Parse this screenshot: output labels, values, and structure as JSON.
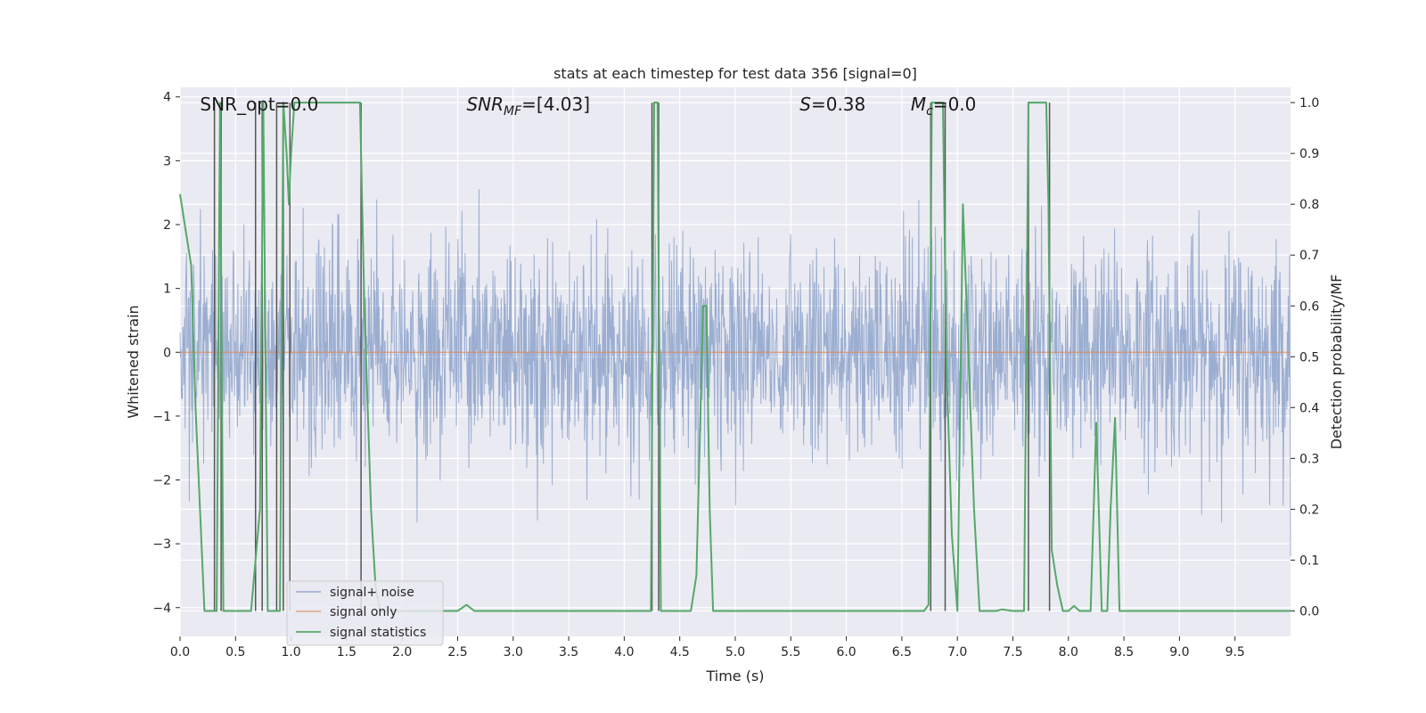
{
  "chart_data": {
    "type": "line",
    "title": "stats at each timestep for test data 356 [signal=0]",
    "xlabel": "Time (s)",
    "ylabel": "Whitened strain",
    "ylabel_right": "Detection probability/MF",
    "xlim": [
      0,
      10
    ],
    "ylim": [
      -4.45,
      4.15
    ],
    "ylim_right": [
      -0.05,
      1.03
    ],
    "xticks": [
      "0.0",
      "0.5",
      "1.0",
      "1.5",
      "2.0",
      "2.5",
      "3.0",
      "3.5",
      "4.0",
      "4.5",
      "5.0",
      "5.5",
      "6.0",
      "6.5",
      "7.0",
      "7.5",
      "8.0",
      "8.5",
      "9.0",
      "9.5"
    ],
    "yticks": [
      "−4",
      "−3",
      "−2",
      "−1",
      "0",
      "1",
      "2",
      "3",
      "4"
    ],
    "yticks_right": [
      "0.0",
      "0.1",
      "0.2",
      "0.3",
      "0.4",
      "0.5",
      "0.6",
      "0.7",
      "0.8",
      "0.9",
      "1.0"
    ],
    "grid": true,
    "legend_position": "lower-left",
    "annotations": [
      {
        "text": "SNR_opt=0.0",
        "x": 0.18
      },
      {
        "text_main": "SNR",
        "text_sub": "MF",
        "text_rest": "=[4.03]",
        "x": 2.58
      },
      {
        "text_main": "S",
        "text_sub": "",
        "text_rest": "=0.38",
        "x": 5.58
      },
      {
        "text_main": "M",
        "text_sub": "c",
        "text_rest": "=0.0",
        "x": 6.58
      }
    ],
    "series": [
      {
        "name": "signal+ noise",
        "color": "#4c72b0",
        "axis": "left",
        "noise_sigma": 0.85,
        "noise_min": -4.05,
        "noise_max": 3.85
      },
      {
        "name": "signal only",
        "color": "#dd8452",
        "axis": "left",
        "values": [
          0,
          0
        ]
      },
      {
        "name": "signal statistics",
        "color": "#55a868",
        "axis": "right",
        "x": [
          0.0,
          0.05,
          0.1,
          0.14,
          0.18,
          0.22,
          0.3,
          0.33,
          0.36,
          0.39,
          0.42,
          0.5,
          0.6,
          0.64,
          0.68,
          0.72,
          0.75,
          0.79,
          0.83,
          0.87,
          0.9,
          0.93,
          0.96,
          0.98,
          1.0,
          1.03,
          1.06,
          1.1,
          1.3,
          1.5,
          1.62,
          1.66,
          1.72,
          1.76,
          1.8,
          2.0,
          2.2,
          2.4,
          2.5,
          2.58,
          2.65,
          2.7,
          3.0,
          3.5,
          4.0,
          4.24,
          4.27,
          4.3,
          4.33,
          4.36,
          4.6,
          4.65,
          4.71,
          4.74,
          4.77,
          4.8,
          5.0,
          5.5,
          6.0,
          6.5,
          6.7,
          6.74,
          6.77,
          6.8,
          6.87,
          6.9,
          6.95,
          7.0,
          7.05,
          7.1,
          7.15,
          7.2,
          7.35,
          7.4,
          7.5,
          7.6,
          7.62,
          7.64,
          7.67,
          7.7,
          7.8,
          7.82,
          7.85,
          7.9,
          7.95,
          8.0,
          8.05,
          8.1,
          8.15,
          8.2,
          8.25,
          8.3,
          8.35,
          8.38,
          8.42,
          8.46,
          8.5,
          9.0,
          9.5,
          10.0
        ],
        "values": [
          0.82,
          0.75,
          0.68,
          0.4,
          0.2,
          0.0,
          0.0,
          0.0,
          1.0,
          0.0,
          0.0,
          0.0,
          0.0,
          0.0,
          0.1,
          0.2,
          1.0,
          0.0,
          0.0,
          0.0,
          0.0,
          1.0,
          0.9,
          0.8,
          0.9,
          1.0,
          1.0,
          1.0,
          1.0,
          1.0,
          1.0,
          0.6,
          0.2,
          0.05,
          0.0,
          0.0,
          0.0,
          0.0,
          0.0,
          0.012,
          0.0,
          0.0,
          0.0,
          0.0,
          0.0,
          0.0,
          1.0,
          1.0,
          0.0,
          0.0,
          0.0,
          0.07,
          0.6,
          0.6,
          0.2,
          0.0,
          0.0,
          0.0,
          0.0,
          0.0,
          0.0,
          0.012,
          1.0,
          1.0,
          1.0,
          0.5,
          0.15,
          0.0,
          0.8,
          0.5,
          0.2,
          0.0,
          0.0,
          0.003,
          0.0,
          0.0,
          0.5,
          1.0,
          1.0,
          1.0,
          1.0,
          0.8,
          0.12,
          0.05,
          0.0,
          0.0,
          0.01,
          0.0,
          0.0,
          0.0,
          0.37,
          0.0,
          0.0,
          0.2,
          0.38,
          0.0,
          0.0,
          0.0,
          0.0,
          0.0
        ]
      }
    ],
    "threshold_lines_x": [
      0.31,
      0.37,
      0.68,
      0.74,
      0.87,
      0.93,
      0.99,
      1.63,
      4.25,
      4.31,
      6.76,
      6.89,
      7.64,
      7.83
    ],
    "threshold_line_color": "#555555"
  }
}
